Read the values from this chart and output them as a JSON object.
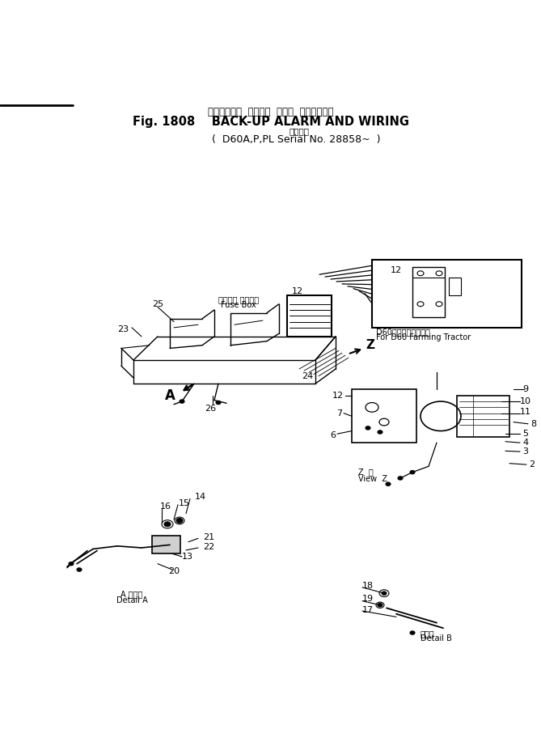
{
  "title_japanese": "バックアップ  アラーム  および  ワイヤリング",
  "title_english": "BACK-UP ALARM AND WIRING",
  "subtitle_japanese": "適用号機",
  "subtitle_english": "D60A,P,PL Serial No. 28858~",
  "fig_number": "Fig. 1808",
  "bg_color": "#ffffff",
  "line_color": "#000000"
}
